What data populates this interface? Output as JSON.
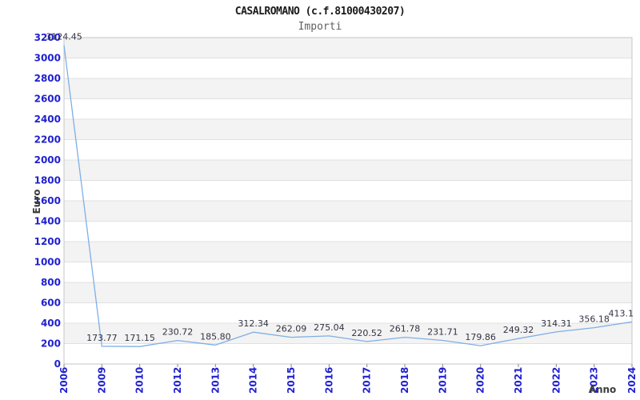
{
  "chart_data": {
    "type": "line",
    "title": "CASALROMANO (c.f.81000430207)",
    "subtitle": "Importi",
    "xlabel": "Anno",
    "ylabel": "Euro",
    "categories": [
      "2006",
      "2009",
      "2010",
      "2012",
      "2013",
      "2014",
      "2015",
      "2016",
      "2017",
      "2018",
      "2019",
      "2020",
      "2021",
      "2022",
      "2023",
      "2024"
    ],
    "values": [
      3124.45,
      173.77,
      171.15,
      230.72,
      185.8,
      312.34,
      262.09,
      275.04,
      220.52,
      261.78,
      231.71,
      179.86,
      249.32,
      314.31,
      356.18,
      413.1
    ],
    "point_labels": [
      "3124.45",
      "173.77",
      "171.15",
      "230.72",
      "185.80",
      "312.34",
      "262.09",
      "275.04",
      "220.52",
      "261.78",
      "231.71",
      "179.86",
      "249.32",
      "314.31",
      "356.18",
      "413.1"
    ],
    "ylim": [
      0,
      3200
    ],
    "ytick_step": 200,
    "legend": "none",
    "grid": "horizontal gridlines with alternating shaded bands",
    "colors": {
      "line": "#7fafe5",
      "tick_label": "#2020d0",
      "data_label": "#333344",
      "band": "#f3f3f3",
      "gridline": "#e0e0e0",
      "border": "#c6c6c6",
      "tick_mark": "#888888",
      "axis_title": "#3d3d3d",
      "title": "#1a1a1a",
      "subtitle": "#606060"
    }
  }
}
